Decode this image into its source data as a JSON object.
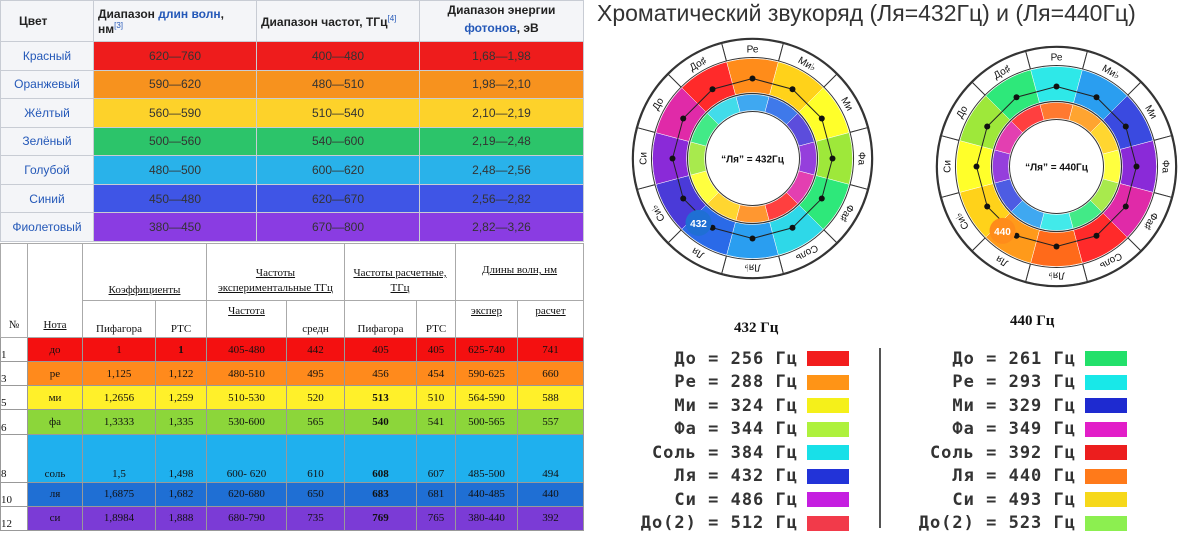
{
  "table1": {
    "headers": [
      "Цвет",
      "Диапазон длин волн, нм",
      "Диапазон частот, ТГц",
      "Диапазон энергии фотонов, эВ"
    ],
    "header_parts": {
      "wave_a": "Диапазон ",
      "wave_link": "длин волн",
      "wave_b": ", нм",
      "wave_ref": "[3]",
      "freq": "Диапазон частот, ТГц",
      "freq_ref": "[4]",
      "energy_a": "Диапазон энергии ",
      "energy_link": "фотонов",
      "energy_b": ", эВ"
    },
    "rows": [
      {
        "name": "Красный",
        "wave": "620—760",
        "freq": "400—480",
        "energy": "1,68—1,98",
        "color": "#ee1c1c"
      },
      {
        "name": "Оранжевый",
        "wave": "590—620",
        "freq": "480—510",
        "energy": "1,98—2,10",
        "color": "#f7921e"
      },
      {
        "name": "Жёлтый",
        "wave": "560—590",
        "freq": "510—540",
        "energy": "2,10—2,19",
        "color": "#fdd22a"
      },
      {
        "name": "Зелёный",
        "wave": "500—560",
        "freq": "540—600",
        "energy": "2,19—2,48",
        "color": "#2cc46a"
      },
      {
        "name": "Голубой",
        "wave": "480—500",
        "freq": "600—620",
        "energy": "2,48—2,56",
        "color": "#29b2ea"
      },
      {
        "name": "Синий",
        "wave": "450—480",
        "freq": "620—670",
        "energy": "2,56—2,82",
        "color": "#3f55e6"
      },
      {
        "name": "Фиолетовый",
        "wave": "380—450",
        "freq": "670—800",
        "energy": "2,82—3,26",
        "color": "#8a3ce2"
      }
    ]
  },
  "table2": {
    "h_coef": "Коэффициенты",
    "h_exp": "Частоты экспериментальные ТГц",
    "h_calc": "Частоты расчетные, ТГц",
    "h_wave": "Длины волн, нм",
    "h_no": "№",
    "h_note": "Нота",
    "h_pyth": "Пифагора",
    "h_rts": "РТС",
    "h_freq": "Частота",
    "h_avg": "средн",
    "h_pyth2": "Пифагора",
    "h_rts2": "РТС",
    "h_exper": "экспер",
    "h_raschet": "расчет",
    "rows": [
      {
        "no": "1",
        "note": "до",
        "pyth": "1",
        "rts": "1",
        "freq": "405-480",
        "avg": "442",
        "cp": "405",
        "cr": "405",
        "we": "625-740",
        "wr": "741",
        "color": "#f41010"
      },
      {
        "no": "3",
        "note": "ре",
        "pyth": "1,125",
        "rts": "1,122",
        "freq": "480-510",
        "avg": "495",
        "cp": "456",
        "cr": "454",
        "we": "590-625",
        "wr": "660",
        "color": "#ff8a1c"
      },
      {
        "no": "5",
        "note": "ми",
        "pyth": "1,2656",
        "rts": "1,259",
        "freq": "510-530",
        "avg": "520",
        "cp": "513",
        "cr": "510",
        "we": "564-590",
        "wr": "588",
        "color": "#fff02a"
      },
      {
        "no": "6",
        "note": "фа",
        "pyth": "1,3333",
        "rts": "1,335",
        "freq": "530-600",
        "avg": "565",
        "cp": "540",
        "cr": "541",
        "we": "500-565",
        "wr": "557",
        "color": "#8cd63a"
      },
      {
        "no": "8",
        "note": "соль",
        "pyth": "1,5",
        "rts": "1,498",
        "freq": "600- 620",
        "avg": "610",
        "cp": "608",
        "cr": "607",
        "we": "485-500",
        "wr": "494",
        "color": "#1fb0ee"
      },
      {
        "no": "10",
        "note": "ля",
        "pyth": "1,6875",
        "rts": "1,682",
        "freq": "620-680",
        "avg": "650",
        "cp": "683",
        "cr": "681",
        "we": "440-485",
        "wr": "440",
        "color": "#1f6fd4"
      },
      {
        "no": "12",
        "note": "си",
        "pyth": "1,8984",
        "rts": "1,888",
        "freq": "680-790",
        "avg": "735",
        "cp": "769",
        "cr": "765",
        "we": "380-440",
        "wr": "392",
        "color": "#7b3bd6"
      }
    ]
  },
  "title": "Хроматический звукоряд (Ля=432Гц) и (Ля=440Гц)",
  "wheel_notes": [
    "Ре",
    "Ми♭",
    "Ми",
    "Фа",
    "Фа♯",
    "Соль",
    "Ля♭",
    "Ля",
    "Си♭",
    "Си",
    "До",
    "До♯"
  ],
  "wheels": [
    {
      "label": "432 Гц",
      "center_text": "“Ля” = 432Гц",
      "badge": "432",
      "badge_color": "#1f6fd4",
      "colors": [
        "#ff8c1a",
        "#ffd21a",
        "#ffff2a",
        "#9ee83a",
        "#2ee87a",
        "#2ed8e8",
        "#2a9ef0",
        "#2a6ae8",
        "#4a3ad8",
        "#8a2ad8",
        "#e02aa8",
        "#ff2a2a"
      ]
    },
    {
      "label": "440 Гц",
      "center_text": "“Ля” = 440Гц",
      "badge": "440",
      "badge_color": "#ff8c1a",
      "colors": [
        "#2ee8e8",
        "#2a9ef0",
        "#3a4ae0",
        "#8a2ad8",
        "#e02aa8",
        "#ff2a2a",
        "#ff6a1a",
        "#ff9a1a",
        "#ffd21a",
        "#ffff2a",
        "#9ee83a",
        "#2ee87a"
      ]
    }
  ],
  "legend432": [
    {
      "text": "До = 256 Гц",
      "color": "#f21d1d"
    },
    {
      "text": "Ре = 288 Гц",
      "color": "#ff9416"
    },
    {
      "text": "Ми = 324 Гц",
      "color": "#f5f01a"
    },
    {
      "text": "Фа = 344 Гц",
      "color": "#aef13c"
    },
    {
      "text": "Соль = 384 Гц",
      "color": "#18e0e8"
    },
    {
      "text": "Ля = 432 Гц",
      "color": "#2233d8"
    },
    {
      "text": "Си = 486 Гц",
      "color": "#c51ee0"
    },
    {
      "text": "До(2) = 512 Гц",
      "color": "#f23a4a"
    }
  ],
  "legend440": [
    {
      "text": "До = 261 Гц",
      "color": "#22e06a"
    },
    {
      "text": "Ре = 293 Гц",
      "color": "#18e8e8"
    },
    {
      "text": "Ми = 329 Гц",
      "color": "#1e2ad0"
    },
    {
      "text": "Фа = 349 Гц",
      "color": "#e21ec8"
    },
    {
      "text": "Соль = 392 Гц",
      "color": "#ec1e1e"
    },
    {
      "text": "Ля = 440 Гц",
      "color": "#ff7a1a"
    },
    {
      "text": "Си = 493 Гц",
      "color": "#f6d81a"
    },
    {
      "text": "До(2) = 523 Гц",
      "color": "#8cef50"
    }
  ]
}
